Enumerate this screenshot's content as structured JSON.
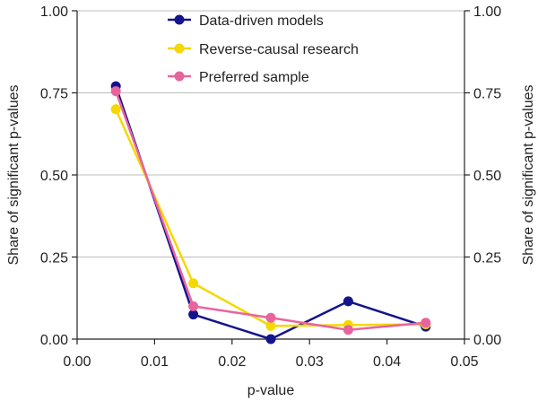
{
  "chart_data": {
    "type": "line",
    "title": "",
    "xlabel": "p-value",
    "ylabel_left": "Share of significant p-values",
    "ylabel_right": "Share of significant p-values",
    "xlim": [
      0,
      0.05
    ],
    "ylim": [
      0,
      1
    ],
    "x_ticks": [
      0.0,
      0.01,
      0.02,
      0.03,
      0.04,
      0.05
    ],
    "x_tick_labels": [
      "0.00",
      "0.01",
      "0.02",
      "0.03",
      "0.04",
      "0.05"
    ],
    "y_ticks": [
      0,
      0.25,
      0.5,
      0.75,
      1
    ],
    "y_tick_labels": [
      "0.00",
      "0.25",
      "0.50",
      "0.75",
      "1.00"
    ],
    "grid": "horizontal",
    "legend_position": "top-right",
    "x": [
      0.005,
      0.015,
      0.025,
      0.035,
      0.045
    ],
    "series": [
      {
        "name": "Data-driven models",
        "color": "#14148c",
        "values": [
          0.77,
          0.075,
          0.0,
          0.115,
          0.038
        ]
      },
      {
        "name": "Reverse-causal research",
        "color": "#f5d800",
        "values": [
          0.7,
          0.17,
          0.04,
          0.043,
          0.045
        ]
      },
      {
        "name": "Preferred sample",
        "color": "#e8649e",
        "values": [
          0.755,
          0.1,
          0.065,
          0.028,
          0.05
        ]
      }
    ]
  }
}
